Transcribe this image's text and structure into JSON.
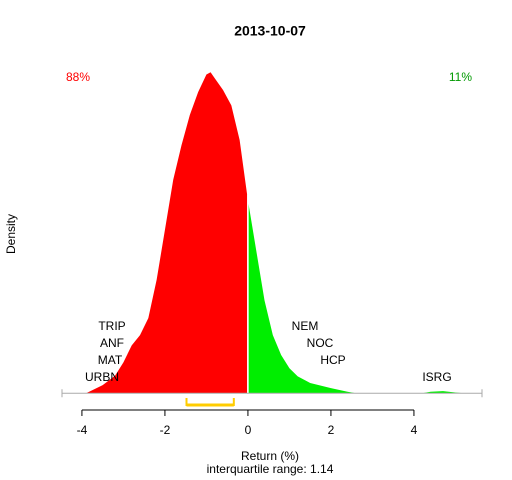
{
  "chart_data": {
    "type": "density",
    "title": "2013-10-07",
    "xlabel": "Return (%)",
    "ylabel": "Density",
    "subtitle": "interquartile range: 1.14",
    "xlim": [
      -4.48,
      5.64
    ],
    "ylim": [
      -0.02,
      0.45
    ],
    "xticks": [
      -4,
      -2,
      0,
      2,
      4
    ],
    "series": [
      {
        "color": "#ff0000",
        "x": [
          -3.9,
          -3.5,
          -3.2,
          -3.0,
          -2.8,
          -2.6,
          -2.4,
          -2.2,
          -2.0,
          -1.8,
          -1.6,
          -1.4,
          -1.2,
          -1.0,
          -0.9,
          -0.8,
          -0.6,
          -0.4,
          -0.2,
          -0.02
        ],
        "values": [
          0,
          0.011,
          0.024,
          0.042,
          0.065,
          0.079,
          0.102,
          0.154,
          0.222,
          0.29,
          0.337,
          0.378,
          0.409,
          0.433,
          0.436,
          0.428,
          0.412,
          0.391,
          0.344,
          0.27
        ]
      },
      {
        "color": "#00ee00",
        "x": [
          0,
          0.2,
          0.4,
          0.6,
          0.8,
          1.0,
          1.2,
          1.5,
          2.0,
          2.4,
          2.6,
          4.2,
          4.4,
          4.7,
          5.0,
          5.2
        ],
        "values": [
          0.262,
          0.194,
          0.126,
          0.079,
          0.052,
          0.034,
          0.023,
          0.014,
          0.007,
          0.002,
          0,
          0,
          0.002,
          0.003,
          0.001,
          0
        ]
      }
    ],
    "iqr": [
      -1.48,
      -0.34
    ],
    "share_labels": [
      {
        "text": "88%",
        "color": "#ff0000"
      },
      {
        "text": "11%",
        "color": "#009900"
      }
    ],
    "annotations": [
      "TRIP",
      "ANF",
      "MAT",
      "URBN",
      "NEM",
      "NOC",
      "HCP",
      "ISRG"
    ]
  }
}
